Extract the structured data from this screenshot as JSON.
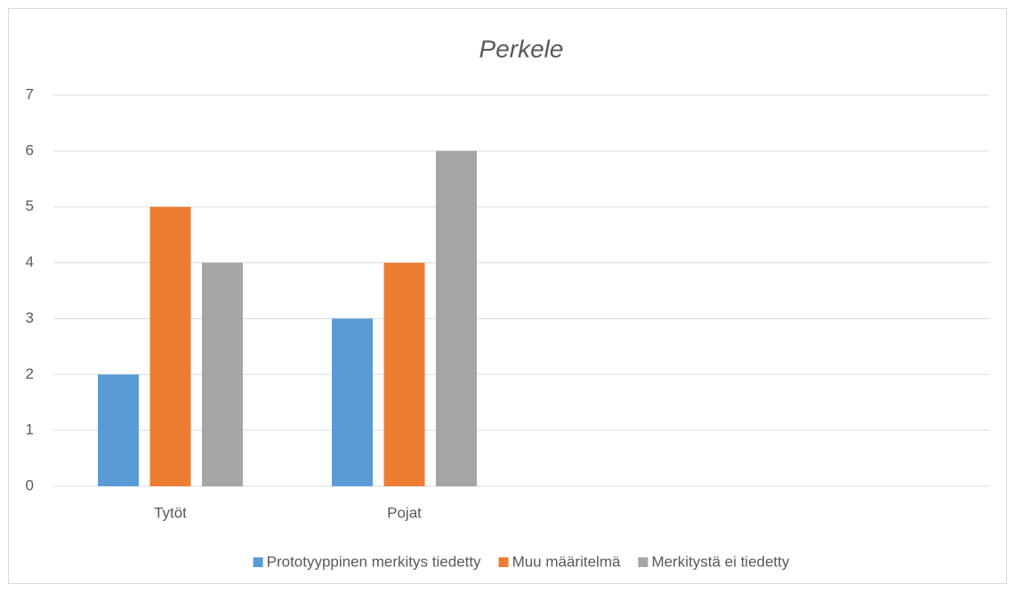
{
  "chart_data": {
    "type": "bar",
    "title": "Perkele",
    "categories": [
      "Tytöt",
      "Pojat",
      null,
      null
    ],
    "series": [
      {
        "name": "Prototyyppinen merkitys tiedetty",
        "color": "#5b9bd5",
        "values": [
          2,
          3,
          null,
          null
        ]
      },
      {
        "name": "Muu määritelmä",
        "color": "#ed7d31",
        "values": [
          5,
          4,
          null,
          null
        ]
      },
      {
        "name": "Merkitystä ei tiedetty",
        "color": "#a5a5a5",
        "values": [
          4,
          6,
          null,
          null
        ]
      }
    ],
    "ylim": [
      0,
      7
    ],
    "yticks": [
      0,
      1,
      2,
      3,
      4,
      5,
      6,
      7
    ],
    "grid": true,
    "legend": "bottom"
  }
}
